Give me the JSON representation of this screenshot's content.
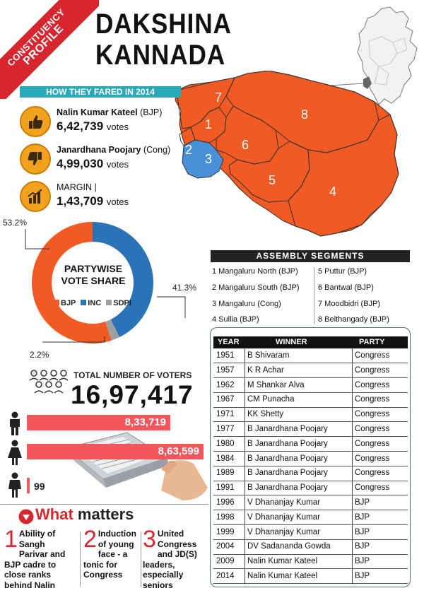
{
  "ribbon": {
    "line1": "CONSTITUENCY",
    "line2": "PROFILE"
  },
  "title": {
    "line1": "DAKSHINA",
    "line2": "KANNADA"
  },
  "fared_header": "HOW THEY FARED IN 2014",
  "candidates": [
    {
      "name": "Nalin Kumar Kateel",
      "party": "(BJP)",
      "votes": "6,42,739",
      "unit": "votes",
      "icon": "thumbs-up-icon"
    },
    {
      "name": "Janardhana Poojary",
      "party": "(Cong)",
      "votes": "4,99,030",
      "unit": "votes",
      "icon": "thumbs-down-icon"
    }
  ],
  "margin": {
    "label": "MARGIN |",
    "votes": "1,43,709",
    "unit": "votes",
    "icon": "bar-graph-icon"
  },
  "vote_share": {
    "title_line1": "PARTYWISE",
    "title_line2": "VOTE SHARE",
    "legend": [
      "BJP",
      "INC",
      "SDPI"
    ],
    "colors": {
      "BJP": "#f15a22",
      "INC": "#2b73b7",
      "SDPI": "#a0a0a0"
    },
    "labels": {
      "BJP": "53.2%",
      "INC": "41.3%",
      "SDPI": "2.2%"
    },
    "values": {
      "BJP": 53.2,
      "INC": 41.3,
      "SDPI": 2.2
    }
  },
  "map": {
    "segment_numbers": [
      "7",
      "1",
      "8",
      "2",
      "3",
      "6",
      "5",
      "4"
    ],
    "colors": {
      "region": "#f15a22",
      "highlight": "#4a90d9"
    }
  },
  "assembly_header": "ASSEMBLY SEGMENTS",
  "assembly_segments": [
    "1 Mangaluru North (BJP)",
    "2 Mangaluru South (BJP)",
    "3 Mangaluru (Cong)",
    "4 Sullia (BJP)",
    "5 Puttur (BJP)",
    "6 Bantwal (BJP)",
    "7 Moodbidri (BJP)",
    "8 Belthangady (BJP)"
  ],
  "history": {
    "headers": [
      "YEAR",
      "WINNER",
      "PARTY"
    ],
    "rows": [
      [
        "1951",
        "B Shivaram",
        "Congress"
      ],
      [
        "1957",
        "K R Achar",
        "Congress"
      ],
      [
        "1962",
        "M Shankar Alva",
        "Congress"
      ],
      [
        "1967",
        "CM Punacha",
        "Congress"
      ],
      [
        "1971",
        "KK Shetty",
        "Congress"
      ],
      [
        "1977",
        "B Janardhana Poojary",
        "Congress"
      ],
      [
        "1980",
        "B Janardhana Poojary",
        "Congress"
      ],
      [
        "1984",
        "B Janardhana Poojary",
        "Congress"
      ],
      [
        "1989",
        "B Janardhana Poojary",
        "Congress"
      ],
      [
        "1991",
        "B Janardhana Poojary",
        "Congress"
      ],
      [
        "1996",
        "V Dhananjay Kumar",
        "BJP"
      ],
      [
        "1998",
        "V Dhananjay Kumar",
        "BJP"
      ],
      [
        "1999",
        "V Dhananjay Kumar",
        "BJP"
      ],
      [
        "2004",
        "DV Sadananda Gowda",
        "BJP"
      ],
      [
        "2009",
        "Nalin Kumar Kateel",
        "BJP"
      ],
      [
        "2014",
        "Nalin Kumar Kateel",
        "BJP"
      ]
    ]
  },
  "voters": {
    "label": "TOTAL NUMBER OF VOTERS",
    "total": "16,97,417",
    "male": {
      "value": "8,33,719",
      "count": 833719,
      "icon": "male-icon"
    },
    "female": {
      "value": "8,63,599",
      "count": 863599,
      "icon": "female-icon"
    },
    "others": {
      "value": "99",
      "count": 99,
      "icon": "third-gender-icon"
    }
  },
  "what_matters": {
    "title_word": "What",
    "title_rest": "matters",
    "points": [
      {
        "num": "1",
        "text": "Ability of Sangh Parivar and BJP cadre to close ranks behind Nalin"
      },
      {
        "num": "2",
        "text": "Induction of young face - a tonic for Congress"
      },
      {
        "num": "3",
        "text": "United Congress and JD(S) leaders, especially seniors"
      }
    ]
  }
}
